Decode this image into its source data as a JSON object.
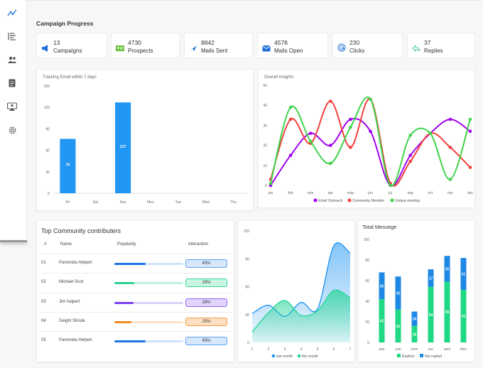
{
  "page_title": "Campaign Progress",
  "sidebar": {
    "items": [
      {
        "icon": "analytics-icon"
      },
      {
        "icon": "list-icon"
      },
      {
        "icon": "users-icon"
      },
      {
        "icon": "document-icon"
      },
      {
        "icon": "contacts-icon"
      },
      {
        "icon": "gear-icon"
      }
    ]
  },
  "stats": [
    {
      "value": "13",
      "label": "Campaigns",
      "icon": "megaphone-icon",
      "color": "#1e6fd9"
    },
    {
      "value": "4730",
      "label": "Prospects",
      "icon": "id-card-icon",
      "color": "#6abf3a"
    },
    {
      "value": "8842",
      "label": "Mails Sent",
      "icon": "send-icon",
      "color": "#1e6fd9"
    },
    {
      "value": "4578",
      "label": "Mails Open",
      "icon": "mail-open-icon",
      "color": "#1e6fd9"
    },
    {
      "value": "230",
      "label": "Clicks",
      "icon": "click-icon",
      "color": "#1e6fd9"
    },
    {
      "value": "37",
      "label": "Replies",
      "icon": "reply-icon",
      "color": "#5bc6a6"
    }
  ],
  "tracking_chart": {
    "title": "Tracking Email within 7 days",
    "chart_data": {
      "type": "bar",
      "categories": [
        "Fri",
        "Sat",
        "Sun",
        "Mon",
        "Tue",
        "Wed",
        "Thu"
      ],
      "values": [
        76,
        0,
        127,
        0,
        0,
        0,
        0
      ],
      "ylim": [
        0,
        150
      ],
      "yticks": [
        0,
        30,
        60,
        90,
        120,
        150
      ],
      "color": "#2196f3"
    }
  },
  "insights_chart": {
    "title": "Overall Insights",
    "chart_data": {
      "type": "line",
      "categories": [
        "jan",
        "feb",
        "mar",
        "apr",
        "may",
        "jun",
        "jul",
        "sep",
        "oct",
        "nov",
        "dec"
      ],
      "ylim": [
        0,
        50
      ],
      "yticks": [
        0,
        10,
        20,
        30,
        40,
        50
      ],
      "series": [
        {
          "name": "Email Outreach",
          "color": "#a000f0",
          "values": [
            0,
            15,
            26,
            20,
            33,
            27,
            0,
            15,
            26,
            33,
            27
          ]
        },
        {
          "name": "Community Member",
          "color": "#f2403c",
          "values": [
            3,
            33,
            21,
            42,
            19,
            43,
            1,
            12,
            26,
            19,
            9
          ]
        },
        {
          "name": "Unique meeting",
          "color": "#3fd34c",
          "values": [
            1,
            39,
            22,
            11,
            29,
            43,
            0,
            25,
            26,
            3,
            33
          ]
        }
      ]
    }
  },
  "contributors": {
    "title": "Top Community contributers",
    "headers": [
      "#",
      "Name",
      "Popularity",
      "Interaction"
    ],
    "rows": [
      {
        "num": "01",
        "name": "Paremela Helpert",
        "popularity": 0.45,
        "interaction": "45%",
        "bar": "#1e73e8",
        "track": "#cfe3fb",
        "badge_bg": "#d7e8fd",
        "badge_border": "#5ba0f2"
      },
      {
        "num": "02",
        "name": "Michael Scot",
        "popularity": 0.29,
        "interaction": "29%",
        "bar": "#2ad18f",
        "track": "#bff3de",
        "badge_bg": "#c9f5e3",
        "badge_border": "#38d495"
      },
      {
        "num": "03",
        "name": "Jim halpert",
        "popularity": 0.28,
        "interaction": "28%",
        "bar": "#7b3ff2",
        "track": "#ddd0fb",
        "badge_bg": "#e2d4fc",
        "badge_border": "#9064f2"
      },
      {
        "num": "04",
        "name": "Deight Shrute",
        "popularity": 0.25,
        "interaction": "25%",
        "bar": "#f08a24",
        "track": "#fbe2c8",
        "badge_bg": "#fde0c3",
        "badge_border": "#f29c46"
      },
      {
        "num": "05",
        "name": "Paremela Helpert",
        "popularity": 0.45,
        "interaction": "45%",
        "bar": "#1e73e8",
        "track": "#cfe3fb",
        "badge_bg": "#d7e8fd",
        "badge_border": "#5ba0f2"
      }
    ]
  },
  "area_chart": {
    "chart_data": {
      "type": "area",
      "x": [
        1,
        2,
        3,
        4,
        5,
        6,
        7
      ],
      "ylim": [
        0,
        120
      ],
      "yticks": [
        0,
        30,
        60,
        90,
        120
      ],
      "series": [
        {
          "name": "last month",
          "color": "#2196f3",
          "values": [
            31,
            40,
            28,
            43,
            36,
            104,
            96
          ]
        },
        {
          "name": "this month",
          "color": "#2bd699",
          "values": [
            11,
            32,
            45,
            29,
            34,
            56,
            48
          ]
        }
      ]
    }
  },
  "total_message_chart": {
    "title": "Total Messege",
    "chart_data": {
      "type": "bar",
      "stacked": true,
      "categories": [
        "san",
        "sun",
        "mon",
        "tue",
        "wed",
        "thru"
      ],
      "ylim": [
        0,
        100
      ],
      "yticks": [
        0,
        20,
        40,
        60,
        80,
        100
      ],
      "series": [
        {
          "name": "Replied",
          "color": "#1ed883",
          "values": [
            42,
            32,
            16,
            54,
            59,
            51
          ]
        },
        {
          "name": "Not replied",
          "color": "#1e88e5",
          "values": [
            26,
            32,
            14,
            17,
            25,
            31
          ]
        }
      ]
    }
  }
}
